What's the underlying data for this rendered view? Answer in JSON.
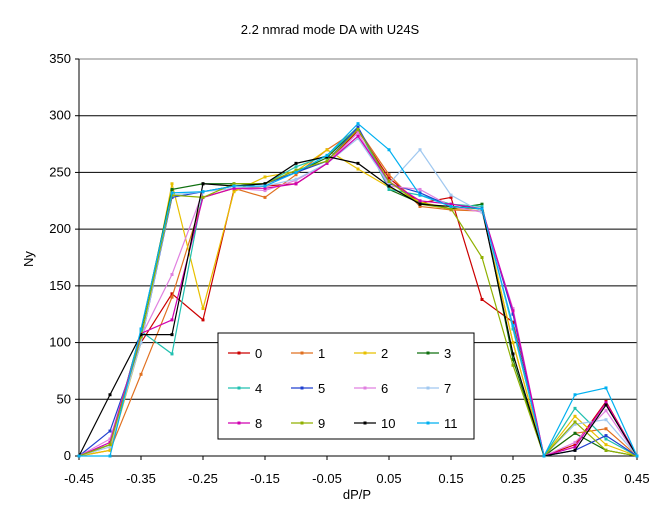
{
  "chart_data": {
    "type": "line",
    "title": "2.2 nmrad mode DA with U24S",
    "xlabel": "dP/P",
    "ylabel": "Ny",
    "xlim": [
      -0.45,
      0.45
    ],
    "ylim": [
      0,
      350
    ],
    "x_ticks": [
      "-0.45",
      "-0.35",
      "-0.25",
      "-0.15",
      "-0.05",
      "0.05",
      "0.15",
      "0.25",
      "0.35",
      "0.45"
    ],
    "x_tick_values": [
      -0.45,
      -0.35,
      -0.25,
      -0.15,
      -0.05,
      0.05,
      0.15,
      0.25,
      0.35,
      0.45
    ],
    "y_ticks": [
      "0",
      "50",
      "100",
      "150",
      "200",
      "250",
      "300",
      "350"
    ],
    "y_tick_values": [
      0,
      50,
      100,
      150,
      200,
      250,
      300,
      350
    ],
    "grid": "horizontal",
    "legend_position": "bottom-center",
    "x": [
      -0.45,
      -0.4,
      -0.35,
      -0.3,
      -0.25,
      -0.2,
      -0.15,
      -0.1,
      -0.05,
      0.0,
      0.05,
      0.1,
      0.15,
      0.2,
      0.25,
      0.3,
      0.35,
      0.4,
      0.45
    ],
    "series": [
      {
        "name": "0",
        "color": "#cc0000",
        "values": [
          0,
          10,
          100,
          143,
          120,
          235,
          238,
          240,
          258,
          287,
          245,
          223,
          228,
          138,
          118,
          0,
          10,
          48,
          0
        ]
      },
      {
        "name": "1",
        "color": "#e07020",
        "values": [
          0,
          5,
          72,
          140,
          228,
          236,
          228,
          248,
          270,
          288,
          248,
          220,
          217,
          216,
          100,
          0,
          20,
          24,
          0
        ]
      },
      {
        "name": "2",
        "color": "#e8c000",
        "values": [
          0,
          5,
          100,
          240,
          130,
          233,
          246,
          251,
          270,
          253,
          237,
          224,
          218,
          218,
          100,
          0,
          35,
          10,
          0
        ]
      },
      {
        "name": "3",
        "color": "#107010",
        "values": [
          0,
          10,
          110,
          235,
          240,
          240,
          240,
          250,
          263,
          290,
          235,
          223,
          218,
          222,
          85,
          0,
          20,
          5,
          0
        ]
      },
      {
        "name": "4",
        "color": "#20c0b0",
        "values": [
          0,
          10,
          110,
          90,
          233,
          238,
          240,
          255,
          265,
          290,
          235,
          230,
          222,
          220,
          112,
          0,
          42,
          15,
          0
        ]
      },
      {
        "name": "5",
        "color": "#2040d0",
        "values": [
          0,
          22,
          100,
          228,
          233,
          238,
          240,
          250,
          260,
          290,
          240,
          232,
          220,
          218,
          125,
          0,
          5,
          18,
          0
        ]
      },
      {
        "name": "6",
        "color": "#e080e0",
        "values": [
          0,
          15,
          105,
          160,
          233,
          236,
          234,
          243,
          258,
          285,
          238,
          235,
          220,
          215,
          130,
          0,
          12,
          40,
          0
        ]
      },
      {
        "name": "7",
        "color": "#a0c8f0",
        "values": [
          0,
          8,
          100,
          230,
          233,
          236,
          238,
          244,
          258,
          280,
          240,
          270,
          230,
          215,
          115,
          0,
          28,
          32,
          0
        ]
      },
      {
        "name": "8",
        "color": "#d000b0",
        "values": [
          0,
          12,
          108,
          120,
          228,
          236,
          236,
          240,
          258,
          282,
          242,
          225,
          222,
          218,
          128,
          0,
          8,
          47,
          0
        ]
      },
      {
        "name": "9",
        "color": "#90b000",
        "values": [
          0,
          10,
          105,
          230,
          228,
          240,
          240,
          252,
          260,
          288,
          242,
          222,
          218,
          175,
          80,
          0,
          30,
          5,
          0
        ]
      },
      {
        "name": "10",
        "color": "#000000",
        "values": [
          0,
          54,
          107,
          107,
          240,
          238,
          240,
          258,
          264,
          258,
          238,
          222,
          220,
          218,
          90,
          0,
          5,
          45,
          0
        ]
      },
      {
        "name": "11",
        "color": "#00b0f0",
        "values": [
          0,
          0,
          112,
          232,
          233,
          238,
          238,
          250,
          265,
          293,
          270,
          230,
          220,
          218,
          115,
          0,
          54,
          60,
          0
        ]
      }
    ]
  }
}
